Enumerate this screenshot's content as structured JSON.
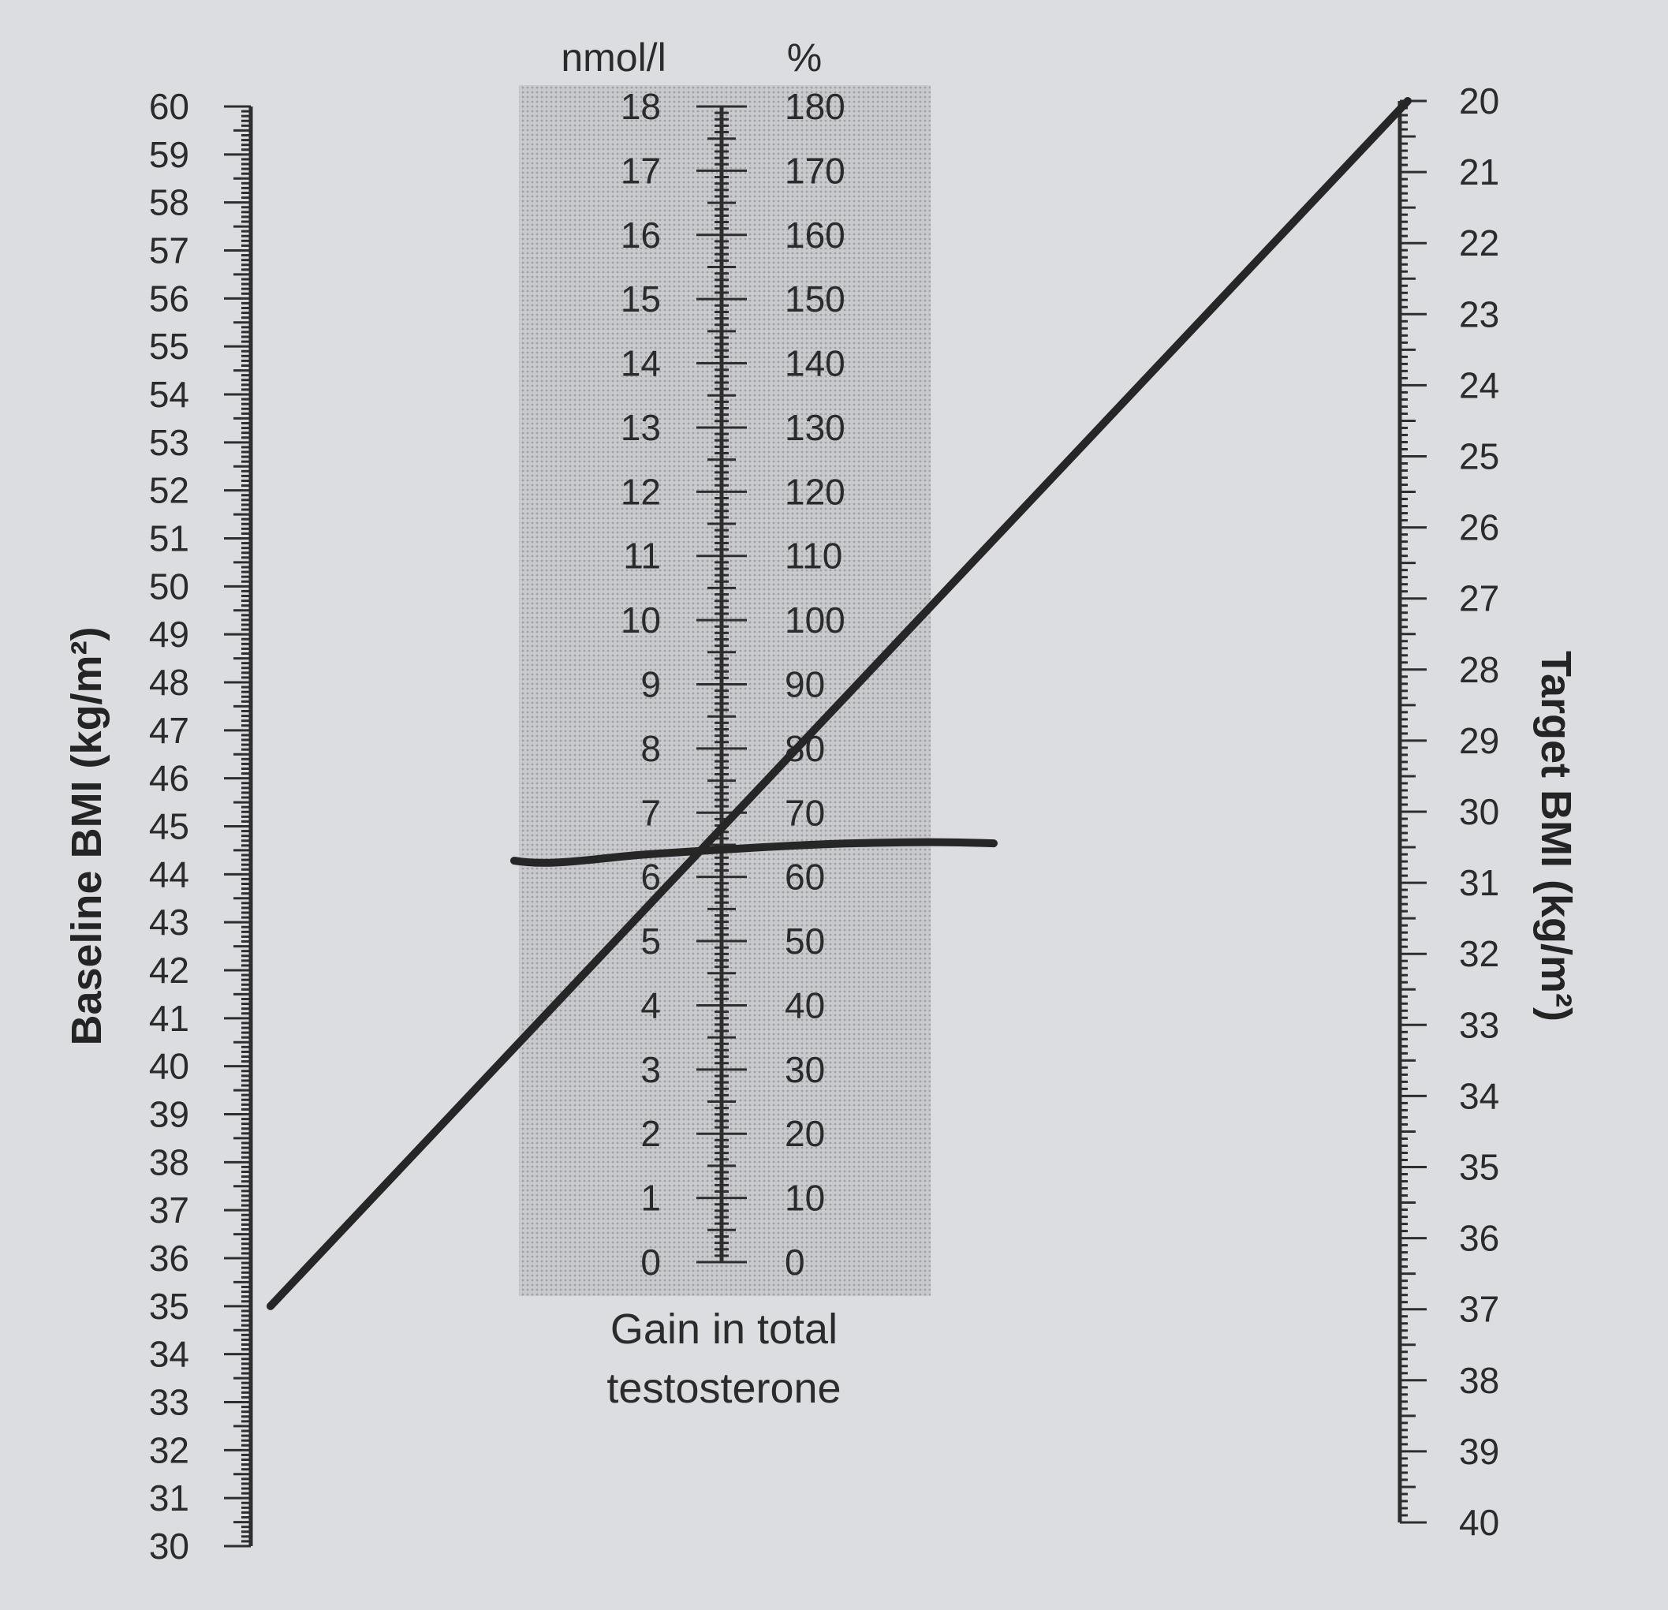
{
  "nomogram": {
    "left_scale": {
      "title": "Baseline BMI (kg/m²)",
      "min": 30,
      "max": 60,
      "labels": [
        "30",
        "31",
        "32",
        "33",
        "34",
        "35",
        "36",
        "37",
        "38",
        "39",
        "40",
        "41",
        "42",
        "43",
        "44",
        "45",
        "46",
        "47",
        "48",
        "49",
        "50",
        "51",
        "52",
        "53",
        "54",
        "55",
        "56",
        "57",
        "58",
        "59",
        "60"
      ]
    },
    "center_scale": {
      "unit_left": "nmol/l",
      "unit_right": "%",
      "caption_line1": "Gain in total",
      "caption_line2": "testosterone",
      "nmol_labels": [
        "0",
        "1",
        "2",
        "3",
        "4",
        "5",
        "6",
        "7",
        "8",
        "9",
        "10",
        "11",
        "12",
        "13",
        "14",
        "15",
        "16",
        "17",
        "18"
      ],
      "pct_labels": [
        "0",
        "10",
        "20",
        "30",
        "40",
        "50",
        "60",
        "70",
        "80",
        "90",
        "100",
        "110",
        "120",
        "130",
        "140",
        "150",
        "160",
        "170",
        "180"
      ],
      "shaded": true
    },
    "right_scale": {
      "title": "Target BMI (kg/m²)",
      "min": 20,
      "max": 40,
      "labels": [
        "20",
        "21",
        "22",
        "23",
        "24",
        "25",
        "26",
        "27",
        "28",
        "29",
        "30",
        "31",
        "32",
        "33",
        "34",
        "35",
        "36",
        "37",
        "38",
        "39",
        "40"
      ]
    },
    "drawn_lines": {
      "connector": {
        "baseline_bmi": 35,
        "target_bmi": 20
      },
      "marker": {
        "crosses_nmol": 6.4
      }
    }
  }
}
